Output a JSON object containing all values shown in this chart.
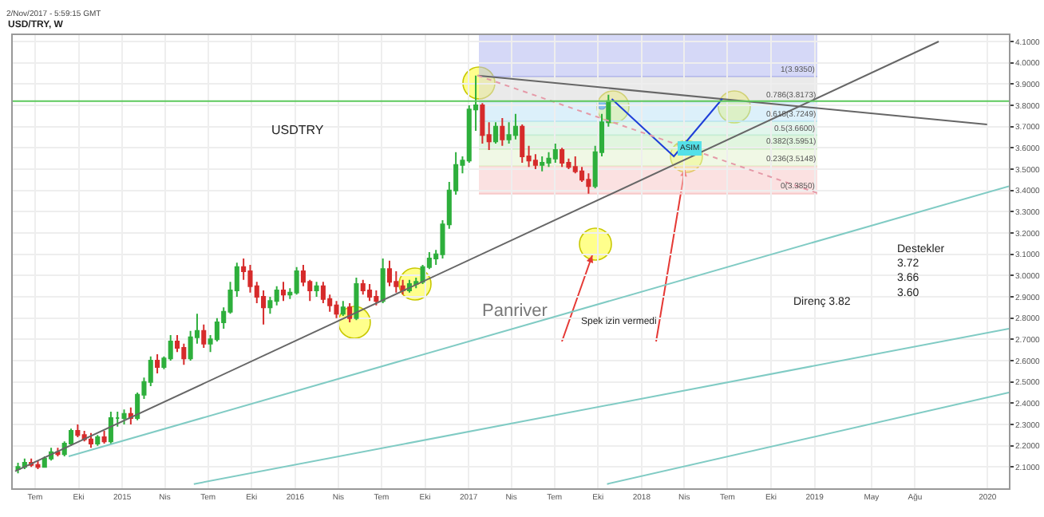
{
  "chart_data": {
    "type": "candlestick",
    "title": "USD/TRY, W",
    "annotations": [
      "2/Nov/2017 - 5:59:15 GMT",
      "USDTRY",
      "Panriver",
      "Spek izin vermedi",
      "Direnç 3.82",
      "Destekler\n3.72\n3.66\n3.60",
      "ASIM"
    ],
    "x": [
      "2014-05-26",
      "2014-06-09",
      "2014-06-23",
      "2014-07-07",
      "2014-07-21",
      "2014-08-04",
      "2014-08-18",
      "2014-09-01",
      "2014-09-15",
      "2014-09-29",
      "2014-10-13",
      "2014-10-27",
      "2014-11-10",
      "2014-11-24",
      "2014-12-08",
      "2014-12-22",
      "2015-01-05",
      "2015-01-19",
      "2015-02-02",
      "2015-02-16",
      "2015-03-02",
      "2015-03-16",
      "2015-03-30",
      "2015-04-13",
      "2015-04-27",
      "2015-05-11",
      "2015-05-25",
      "2015-06-08",
      "2015-06-22",
      "2015-07-06",
      "2015-07-20",
      "2015-08-03",
      "2015-08-17",
      "2015-08-31",
      "2015-09-14",
      "2015-09-28",
      "2015-10-12",
      "2015-10-26",
      "2015-11-09",
      "2015-11-23",
      "2015-12-07",
      "2015-12-21",
      "2016-01-04",
      "2016-01-18",
      "2016-02-01",
      "2016-02-15",
      "2016-02-29",
      "2016-03-14",
      "2016-03-28",
      "2016-04-11",
      "2016-04-25",
      "2016-05-09",
      "2016-05-23",
      "2016-06-06",
      "2016-06-20",
      "2016-07-04",
      "2016-07-18",
      "2016-08-01",
      "2016-08-15",
      "2016-08-29",
      "2016-09-12",
      "2016-09-26",
      "2016-10-10",
      "2016-10-24",
      "2016-11-07",
      "2016-11-21",
      "2016-12-05",
      "2016-12-19",
      "2017-01-02",
      "2017-01-16",
      "2017-01-30",
      "2017-02-13",
      "2017-02-27",
      "2017-03-13",
      "2017-03-27",
      "2017-04-10",
      "2017-04-24",
      "2017-05-08",
      "2017-05-22",
      "2017-06-05",
      "2017-06-19",
      "2017-07-03",
      "2017-07-17",
      "2017-07-31",
      "2017-08-14",
      "2017-08-28",
      "2017-09-11",
      "2017-09-25",
      "2017-10-09",
      "2017-10-23"
    ],
    "ohlc": [
      [
        2.09,
        2.12,
        2.07,
        2.1
      ],
      [
        2.1,
        2.14,
        2.09,
        2.12
      ],
      [
        2.12,
        2.14,
        2.1,
        2.11
      ],
      [
        2.11,
        2.13,
        2.09,
        2.1
      ],
      [
        2.1,
        2.15,
        2.1,
        2.14
      ],
      [
        2.14,
        2.19,
        2.13,
        2.17
      ],
      [
        2.17,
        2.19,
        2.15,
        2.16
      ],
      [
        2.16,
        2.22,
        2.15,
        2.21
      ],
      [
        2.21,
        2.28,
        2.2,
        2.27
      ],
      [
        2.27,
        2.3,
        2.24,
        2.25
      ],
      [
        2.25,
        2.27,
        2.22,
        2.23
      ],
      [
        2.23,
        2.26,
        2.19,
        2.21
      ],
      [
        2.21,
        2.25,
        2.2,
        2.24
      ],
      [
        2.24,
        2.27,
        2.21,
        2.22
      ],
      [
        2.22,
        2.36,
        2.21,
        2.33
      ],
      [
        2.33,
        2.36,
        2.29,
        2.33
      ],
      [
        2.33,
        2.37,
        2.3,
        2.35
      ],
      [
        2.35,
        2.38,
        2.3,
        2.33
      ],
      [
        2.33,
        2.45,
        2.32,
        2.44
      ],
      [
        2.44,
        2.52,
        2.42,
        2.5
      ],
      [
        2.5,
        2.62,
        2.48,
        2.6
      ],
      [
        2.6,
        2.63,
        2.54,
        2.57
      ],
      [
        2.57,
        2.62,
        2.56,
        2.61
      ],
      [
        2.61,
        2.72,
        2.6,
        2.69
      ],
      [
        2.69,
        2.72,
        2.64,
        2.66
      ],
      [
        2.66,
        2.68,
        2.58,
        2.61
      ],
      [
        2.61,
        2.74,
        2.6,
        2.71
      ],
      [
        2.71,
        2.82,
        2.68,
        2.74
      ],
      [
        2.74,
        2.77,
        2.66,
        2.68
      ],
      [
        2.68,
        2.72,
        2.64,
        2.7
      ],
      [
        2.7,
        2.8,
        2.69,
        2.78
      ],
      [
        2.78,
        2.85,
        2.75,
        2.83
      ],
      [
        2.83,
        2.97,
        2.82,
        2.93
      ],
      [
        2.93,
        3.06,
        2.9,
        3.04
      ],
      [
        3.04,
        3.08,
        2.98,
        3.02
      ],
      [
        3.02,
        3.05,
        2.92,
        2.95
      ],
      [
        2.95,
        2.97,
        2.87,
        2.9
      ],
      [
        2.9,
        2.93,
        2.77,
        2.85
      ],
      [
        2.85,
        2.9,
        2.82,
        2.88
      ],
      [
        2.88,
        2.95,
        2.86,
        2.93
      ],
      [
        2.93,
        2.97,
        2.88,
        2.91
      ],
      [
        2.91,
        2.94,
        2.89,
        2.92
      ],
      [
        2.92,
        3.04,
        2.91,
        3.02
      ],
      [
        3.02,
        3.05,
        2.95,
        2.97
      ],
      [
        2.97,
        2.98,
        2.88,
        2.93
      ],
      [
        2.93,
        2.97,
        2.9,
        2.95
      ],
      [
        2.95,
        2.97,
        2.87,
        2.89
      ],
      [
        2.89,
        2.91,
        2.83,
        2.86
      ],
      [
        2.86,
        2.88,
        2.8,
        2.82
      ],
      [
        2.82,
        2.88,
        2.81,
        2.85
      ],
      [
        2.85,
        2.87,
        2.78,
        2.8
      ],
      [
        2.8,
        2.99,
        2.79,
        2.96
      ],
      [
        2.96,
        2.98,
        2.91,
        2.93
      ],
      [
        2.93,
        2.96,
        2.88,
        2.9
      ],
      [
        2.9,
        2.93,
        2.86,
        2.88
      ],
      [
        2.88,
        3.08,
        2.87,
        3.03
      ],
      [
        3.03,
        3.07,
        2.95,
        2.97
      ],
      [
        2.97,
        3.02,
        2.92,
        2.95
      ],
      [
        2.95,
        2.98,
        2.91,
        2.93
      ],
      [
        2.93,
        2.98,
        2.92,
        2.96
      ],
      [
        2.96,
        2.99,
        2.94,
        2.97
      ],
      [
        2.97,
        3.05,
        2.96,
        3.04
      ],
      [
        3.04,
        3.11,
        3.03,
        3.08
      ],
      [
        3.08,
        3.12,
        3.05,
        3.1
      ],
      [
        3.1,
        3.26,
        3.08,
        3.24
      ],
      [
        3.24,
        3.44,
        3.22,
        3.4
      ],
      [
        3.4,
        3.58,
        3.38,
        3.52
      ],
      [
        3.52,
        3.56,
        3.48,
        3.54
      ],
      [
        3.54,
        3.8,
        3.53,
        3.78
      ],
      [
        3.78,
        3.94,
        3.68,
        3.8
      ],
      [
        3.8,
        3.81,
        3.62,
        3.66
      ],
      [
        3.66,
        3.72,
        3.59,
        3.63
      ],
      [
        3.63,
        3.72,
        3.62,
        3.7
      ],
      [
        3.7,
        3.74,
        3.61,
        3.64
      ],
      [
        3.64,
        3.72,
        3.62,
        3.66
      ],
      [
        3.66,
        3.76,
        3.64,
        3.7
      ],
      [
        3.7,
        3.71,
        3.53,
        3.56
      ],
      [
        3.56,
        3.61,
        3.51,
        3.54
      ],
      [
        3.54,
        3.57,
        3.5,
        3.52
      ],
      [
        3.52,
        3.56,
        3.49,
        3.53
      ],
      [
        3.53,
        3.58,
        3.51,
        3.55
      ],
      [
        3.55,
        3.62,
        3.53,
        3.59
      ],
      [
        3.59,
        3.6,
        3.51,
        3.53
      ],
      [
        3.53,
        3.55,
        3.5,
        3.51
      ],
      [
        3.51,
        3.56,
        3.48,
        3.49
      ],
      [
        3.49,
        3.51,
        3.44,
        3.45
      ],
      [
        3.45,
        3.48,
        3.385,
        3.42
      ],
      [
        3.42,
        3.61,
        3.41,
        3.58
      ],
      [
        3.58,
        3.76,
        3.56,
        3.72
      ],
      [
        3.72,
        3.85,
        3.7,
        3.82
      ]
    ],
    "series": [
      {
        "type": "line",
        "color": "#666666",
        "x": [
          "2014-05-20",
          "2019-09-20"
        ],
        "values": [
          2.08,
          4.1
        ]
      },
      {
        "type": "line",
        "color": "#666666",
        "x": [
          "2017-01-20",
          "2019-12-31"
        ],
        "values": [
          3.94,
          3.71
        ]
      },
      {
        "type": "line",
        "color": "#80cbc4",
        "x": [
          "2014-09-10",
          "2020-02-15"
        ],
        "values": [
          2.15,
          3.42
        ]
      },
      {
        "type": "line",
        "color": "#80cbc4",
        "x": [
          "2015-06-01",
          "2020-02-15"
        ],
        "values": [
          2.02,
          2.75
        ]
      },
      {
        "type": "line",
        "color": "#80cbc4",
        "x": [
          "2017-10-20",
          "2020-02-15"
        ],
        "values": [
          2.02,
          2.45
        ]
      },
      {
        "type": "line",
        "color": "#1e3fd8",
        "x": [
          "2017-10-30",
          "2018-03-10",
          "2018-06-20"
        ],
        "values": [
          3.83,
          3.56,
          3.83
        ]
      },
      {
        "type": "line",
        "color": "#e59aa8",
        "line_style": "dotted",
        "x": [
          "2017-01-20",
          "2019-01-10"
        ],
        "values": [
          3.94,
          3.385
        ]
      }
    ],
    "bands": [
      {
        "axis": "y",
        "from": 3.935,
        "to": 4.13,
        "label": "1(3.9350)",
        "color": "#b3b8f0"
      },
      {
        "axis": "y",
        "from": 3.8173,
        "to": 3.935,
        "label": "0.786(3.8173)",
        "color": "#d9d9d9"
      },
      {
        "axis": "y",
        "from": 3.7249,
        "to": 3.8173,
        "label": "0.618(3.7249)",
        "color": "#bfe3f5"
      },
      {
        "axis": "y",
        "from": 3.66,
        "to": 3.7249,
        "label": "0.5(3.6600)",
        "color": "#c8eedd"
      },
      {
        "axis": "y",
        "from": 3.5951,
        "to": 3.66,
        "label": "0.382(3.5951)",
        "color": "#c9ecc4"
      },
      {
        "axis": "y",
        "from": 3.5148,
        "to": 3.5951,
        "label": "0.236(3.5148)",
        "color": "#e4f2cf"
      },
      {
        "axis": "y",
        "from": 3.385,
        "to": 3.5148,
        "label": "0(3.3850)",
        "color": "#f7c9c9"
      }
    ],
    "ref_lines": [
      {
        "axis": "y",
        "value": 3.82,
        "label": null,
        "color": "#5cc95c"
      }
    ],
    "xlim": [
      "2014-05-15",
      "2020-02-15"
    ],
    "xticks": [
      {
        "value": "2014-07-01",
        "label": "Tem"
      },
      {
        "value": "2014-10-01",
        "label": "Eki"
      },
      {
        "value": "2015-01-01",
        "label": "2015"
      },
      {
        "value": "2015-04-01",
        "label": "Nis"
      },
      {
        "value": "2015-07-01",
        "label": "Tem"
      },
      {
        "value": "2015-10-01",
        "label": "Eki"
      },
      {
        "value": "2016-01-01",
        "label": "2016"
      },
      {
        "value": "2016-04-01",
        "label": "Nis"
      },
      {
        "value": "2016-07-01",
        "label": "Tem"
      },
      {
        "value": "2016-10-01",
        "label": "Eki"
      },
      {
        "value": "2017-01-01",
        "label": "2017"
      },
      {
        "value": "2017-04-01",
        "label": "Nis"
      },
      {
        "value": "2017-07-01",
        "label": "Tem"
      },
      {
        "value": "2017-10-01",
        "label": "Eki"
      },
      {
        "value": "2018-01-01",
        "label": "2018"
      },
      {
        "value": "2018-04-01",
        "label": "Nis"
      },
      {
        "value": "2018-07-01",
        "label": "Tem"
      },
      {
        "value": "2018-10-01",
        "label": "Eki"
      },
      {
        "value": "2019-01-01",
        "label": "2019"
      },
      {
        "value": "2019-05-01",
        "label": "May"
      },
      {
        "value": "2019-08-01",
        "label": "Ağu"
      },
      {
        "value": "2020-01-01",
        "label": "2020"
      }
    ],
    "ylim": [
      2.0,
      4.13
    ],
    "yticks": [
      {
        "value": 2.1,
        "label": "2.1000"
      },
      {
        "value": 2.2,
        "label": "2.2000"
      },
      {
        "value": 2.3,
        "label": "2.3000"
      },
      {
        "value": 2.4,
        "label": "2.4000"
      },
      {
        "value": 2.5,
        "label": "2.5000"
      },
      {
        "value": 2.6,
        "label": "2.6000"
      },
      {
        "value": 2.7,
        "label": "2.7000"
      },
      {
        "value": 2.8,
        "label": "2.8000"
      },
      {
        "value": 2.9,
        "label": "2.9000"
      },
      {
        "value": 3.0,
        "label": "3.0000"
      },
      {
        "value": 3.1,
        "label": "3.1000"
      },
      {
        "value": 3.2,
        "label": "3.2000"
      },
      {
        "value": 3.3,
        "label": "3.3000"
      },
      {
        "value": 3.4,
        "label": "3.4000"
      },
      {
        "value": 3.5,
        "label": "3.5000"
      },
      {
        "value": 3.6,
        "label": "3.6000"
      },
      {
        "value": 3.7,
        "label": "3.7000"
      },
      {
        "value": 3.8,
        "label": "3.8000"
      },
      {
        "value": 3.9,
        "label": "3.9000"
      },
      {
        "value": 4.0,
        "label": "4.0000"
      },
      {
        "value": 4.1,
        "label": "4.1000"
      }
    ],
    "grid": true
  }
}
